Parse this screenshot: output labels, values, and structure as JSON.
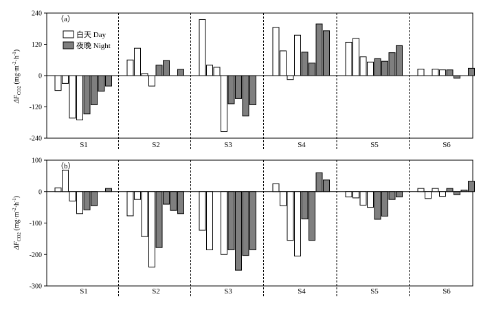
{
  "ylabel": "ΔF",
  "ylabel_sub": "CO2",
  "ylabel_unit": "(mg·m",
  "ylabel_sup1": "-2",
  "ylabel_unit_mid": "·h",
  "ylabel_sup2": "-1",
  "ylabel_unit_end": ")",
  "legend": {
    "day": "白天 Day",
    "night": "夜晚 Night"
  },
  "colors": {
    "day": "#ffffff",
    "night": "#7f7f7f",
    "stroke": "#000000"
  },
  "chart_data": [
    {
      "type": "bar",
      "panel_label": "（a）",
      "categories": [
        "S1",
        "S2",
        "S3",
        "S4",
        "S5",
        "S6"
      ],
      "ylim": [
        -240,
        240
      ],
      "yticks": [
        "240",
        "120",
        "0",
        "-120",
        "-240"
      ],
      "series": [
        {
          "name": "白天 Day",
          "values": [
            [
              -57,
              -30,
              -163,
              -170
            ],
            [
              60,
              105,
              8,
              -40
            ],
            [
              215,
              40,
              32,
              -215
            ],
            [
              185,
              95,
              -15,
              155
            ],
            [
              128,
              143,
              72,
              52
            ],
            [
              25,
              0,
              25,
              22
            ]
          ]
        },
        {
          "name": "夜晚 Night",
          "values": [
            [
              -147,
              -112,
              -60,
              -40
            ],
            [
              40,
              58,
              0,
              24
            ],
            [
              -108,
              -88,
              -155,
              -112
            ],
            [
              90,
              48,
              198,
              172
            ],
            [
              65,
              55,
              88,
              115
            ],
            [
              22,
              -10,
              0,
              28
            ]
          ]
        }
      ]
    },
    {
      "type": "bar",
      "panel_label": "（b）",
      "categories": [
        "S1",
        "S2",
        "S3",
        "S4",
        "S5",
        "S6"
      ],
      "ylim": [
        -300,
        100
      ],
      "yticks": [
        "100",
        "0",
        "-100",
        "-200",
        "-300"
      ],
      "series": [
        {
          "name": "白天 Day",
          "values": [
            [
              12,
              68,
              -30,
              -70
            ],
            [
              -77,
              -25,
              -143,
              -240
            ],
            [
              -123,
              -185,
              0,
              -200
            ],
            [
              25,
              -45,
              -155,
              -205
            ],
            [
              -17,
              -20,
              -43,
              -50
            ],
            [
              10,
              -22,
              10,
              -15
            ]
          ]
        },
        {
          "name": "夜晚 Night",
          "values": [
            [
              -58,
              -45,
              0,
              10
            ],
            [
              -178,
              -40,
              -60,
              -70
            ],
            [
              -185,
              -250,
              -203,
              -185
            ],
            [
              -87,
              -155,
              60,
              37
            ],
            [
              -88,
              -78,
              -25,
              -17
            ],
            [
              10,
              -10,
              5,
              33
            ]
          ]
        }
      ]
    }
  ]
}
